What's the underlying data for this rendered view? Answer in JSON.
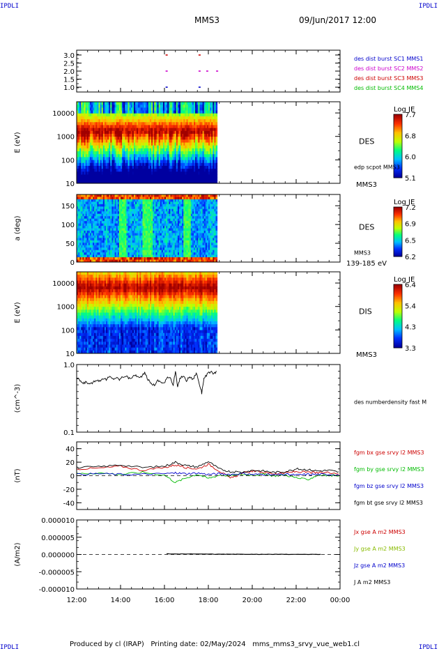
{
  "corner_labels": {
    "top_left": "IPDLI",
    "top_right": "IPDLI",
    "bottom_left": "IPDLI",
    "bottom_right": "IPDLI"
  },
  "header": {
    "title": "MMS3",
    "datetime": "09/Jun/2017 12:00"
  },
  "footer": {
    "text": "Produced by cl (IRAP)   Printing date: 02/May/2024   mms_mms3_srvy_vue_web1.cl"
  },
  "colors": {
    "spectrogram_scale": [
      "#0000a0",
      "#0030ff",
      "#00c0ff",
      "#00ff80",
      "#c0ff00",
      "#ffc000",
      "#ff3000",
      "#a00000"
    ]
  },
  "chart_data": [
    {
      "type": "scatter",
      "panel": "burst",
      "ylim": [
        0.7,
        3.3
      ],
      "yticks": [
        "3.0",
        "2.5",
        "2.0",
        "1.5",
        "1.0"
      ],
      "ytick_values": [
        3.0,
        2.5,
        2.0,
        1.5,
        1.0
      ],
      "legend": [
        {
          "label": "des dist burst SC1 MMS1",
          "color": "#0000cc"
        },
        {
          "label": "des dist burst SC2 MMS2",
          "color": "#cc00cc"
        },
        {
          "label": "des dist burst SC3 MMS3",
          "color": "#cc0000"
        },
        {
          "label": "des dist burst SC4 MMS4",
          "color": "#00bb00"
        }
      ],
      "points": [
        {
          "x": 16.1,
          "y": 3.0,
          "color": "#cc0000"
        },
        {
          "x": 17.6,
          "y": 3.0,
          "color": "#cc0000"
        },
        {
          "x": 16.1,
          "y": 2.0,
          "color": "#cc00cc"
        },
        {
          "x": 17.6,
          "y": 2.0,
          "color": "#cc00cc"
        },
        {
          "x": 17.95,
          "y": 2.0,
          "color": "#cc00cc"
        },
        {
          "x": 18.4,
          "y": 2.0,
          "color": "#cc00cc"
        },
        {
          "x": 16.1,
          "y": 1.0,
          "color": "#0000cc"
        },
        {
          "x": 17.6,
          "y": 1.0,
          "color": "#0000cc"
        }
      ]
    },
    {
      "type": "heatmap",
      "panel": "des_energy",
      "ylabel": "E (eV)",
      "ylim": [
        10,
        30000
      ],
      "log_y": true,
      "yticks": [
        "10000",
        "1000",
        "100",
        "10"
      ],
      "ytick_values": [
        10000,
        1000,
        100,
        10
      ],
      "data_x_range": [
        12.0,
        18.4
      ],
      "side_labels": [
        "DES",
        "edp scpot MMS3"
      ],
      "below_label": "MMS3",
      "colorbar": {
        "title": "Log JE",
        "ticks": [
          "7.7",
          "6.8",
          "6.0",
          "5.1"
        ]
      }
    },
    {
      "type": "heatmap",
      "panel": "des_pitch",
      "ylabel": "a (deg)",
      "ylim": [
        0,
        180
      ],
      "yticks": [
        "150",
        "100",
        "50",
        "0"
      ],
      "ytick_values": [
        150,
        100,
        50,
        0
      ],
      "data_x_range": [
        12.0,
        18.4
      ],
      "side_labels": [
        "DES",
        "MMS3"
      ],
      "below_label": "139-185 eV",
      "colorbar": {
        "title": "Log JE",
        "ticks": [
          "7.2",
          "6.9",
          "6.5",
          "6.2"
        ]
      }
    },
    {
      "type": "heatmap",
      "panel": "dis_energy",
      "ylabel": "E (eV)",
      "ylim": [
        10,
        30000
      ],
      "log_y": true,
      "yticks": [
        "10000",
        "1000",
        "100",
        "10"
      ],
      "ytick_values": [
        10000,
        1000,
        100,
        10
      ],
      "data_x_range": [
        12.0,
        18.4
      ],
      "side_labels": [
        "DIS"
      ],
      "below_label": "MMS3",
      "colorbar": {
        "title": "Log JE",
        "ticks": [
          "6.4",
          "5.4",
          "4.3",
          "3.3"
        ]
      }
    },
    {
      "type": "line",
      "panel": "density",
      "ylabel": "(cm^-3)",
      "ylim": [
        0.1,
        1.0
      ],
      "log_y": true,
      "yticks": [
        "1.0",
        "0.1"
      ],
      "ytick_values": [
        1.0,
        0.1
      ],
      "series": [
        {
          "name": "des numberdensity fast M",
          "color": "#000000",
          "x": [
            12.0,
            12.15,
            12.3,
            12.45,
            12.6,
            12.75,
            12.9,
            13.05,
            13.2,
            13.35,
            13.5,
            13.65,
            13.8,
            13.95,
            14.1,
            14.25,
            14.4,
            14.55,
            14.7,
            14.85,
            15.0,
            15.1,
            15.25,
            15.4,
            15.55,
            15.7,
            15.85,
            16.0,
            16.1,
            16.25,
            16.4,
            16.5,
            16.6,
            16.7,
            16.85,
            17.0,
            17.15,
            17.3,
            17.45,
            17.6,
            17.7,
            17.8,
            17.95,
            18.1,
            18.25,
            18.4
          ],
          "y": [
            0.62,
            0.58,
            0.52,
            0.56,
            0.5,
            0.55,
            0.6,
            0.57,
            0.63,
            0.6,
            0.66,
            0.61,
            0.64,
            0.6,
            0.66,
            0.68,
            0.62,
            0.66,
            0.7,
            0.63,
            0.69,
            0.75,
            0.6,
            0.52,
            0.5,
            0.58,
            0.55,
            0.53,
            0.62,
            0.66,
            0.5,
            0.78,
            0.45,
            0.62,
            0.68,
            0.58,
            0.66,
            0.6,
            0.75,
            0.5,
            0.38,
            0.62,
            0.72,
            0.78,
            0.74,
            0.8
          ]
        }
      ]
    },
    {
      "type": "line",
      "panel": "magnetic_field",
      "ylabel": "(nT)",
      "ylim": [
        -50,
        50
      ],
      "yticks": [
        "40",
        "20",
        "0",
        "-20",
        "-40"
      ],
      "ytick_values": [
        40,
        20,
        0,
        -20,
        -40
      ],
      "series": [
        {
          "name": "fgm bx gse srvy l2 MMS3",
          "color": "#cc0000",
          "x": [
            12,
            13,
            14,
            15,
            16,
            16.5,
            17,
            17.5,
            18,
            18.5,
            19,
            19.5,
            20,
            20.5,
            21,
            21.5,
            22,
            22.5,
            23,
            23.5,
            24
          ],
          "y": [
            10,
            11,
            14,
            8,
            12,
            16,
            12,
            10,
            17,
            7,
            -4,
            3,
            7,
            5,
            3,
            4,
            6,
            5,
            4,
            5,
            3
          ]
        },
        {
          "name": "fgm by gse srvy l2 MMS3",
          "color": "#00bb00",
          "x": [
            12,
            13,
            14,
            15,
            16,
            16.5,
            17,
            17.5,
            18,
            18.5,
            19,
            19.5,
            20,
            20.5,
            21,
            21.5,
            22,
            22.5,
            23,
            23.5,
            24
          ],
          "y": [
            3,
            4,
            2,
            5,
            1,
            -10,
            -3,
            2,
            -4,
            1,
            0,
            2,
            1,
            2,
            0,
            1,
            -3,
            -6,
            1,
            0,
            1
          ]
        },
        {
          "name": "fgm bz gse srvy l2 MMS3",
          "color": "#0000cc",
          "x": [
            12,
            13,
            14,
            15,
            16,
            16.5,
            17,
            17.5,
            18,
            18.5,
            19,
            19.5,
            20,
            20.5,
            21,
            21.5,
            22,
            22.5,
            23,
            23.5,
            24
          ],
          "y": [
            2,
            3,
            2,
            2,
            3,
            4,
            3,
            4,
            2,
            3,
            2,
            3,
            2,
            2,
            1,
            2,
            1,
            2,
            2,
            2,
            1
          ]
        },
        {
          "name": "fgm bt gse srvy l2 MMS3",
          "color": "#000000",
          "x": [
            12,
            13,
            14,
            15,
            16,
            16.5,
            17,
            17.5,
            18,
            18.5,
            19,
            19.5,
            20,
            20.5,
            21,
            21.5,
            22,
            22.5,
            23,
            23.5,
            24
          ],
          "y": [
            12,
            13,
            16,
            12,
            14,
            20,
            15,
            13,
            21,
            10,
            6,
            5,
            8,
            7,
            5,
            6,
            10,
            9,
            7,
            8,
            5
          ]
        }
      ]
    },
    {
      "type": "line",
      "panel": "current_density",
      "ylabel": "(A/m2)",
      "ylim": [
        -1e-05,
        1e-05
      ],
      "yticks": [
        "0.000010",
        "0.000005",
        "0.000000",
        "-0.000005",
        "-0.000010"
      ],
      "ytick_values": [
        1e-05,
        5e-06,
        0,
        -5e-06,
        -1e-05
      ],
      "legend": [
        {
          "label": "Jx gse A m2 MMS3",
          "color": "#cc0000"
        },
        {
          "label": "Jy gse A m2 MMS3",
          "color": "#88bb00"
        },
        {
          "label": "Jz gse A m2 MMS3",
          "color": "#0000cc"
        },
        {
          "label": "J A m2 MMS3",
          "color": "#000000"
        }
      ],
      "series": [
        {
          "name": "J A m2 MMS3",
          "color": "#000000",
          "x": [
            16.1,
            16.6,
            17.2,
            17.8,
            18.4,
            19.0,
            19.6,
            20.2,
            20.8,
            21.4,
            22.0,
            22.6,
            23.2
          ],
          "y": [
            2e-07,
            1e-07,
            1.5e-07,
            1e-07,
            8e-08,
            6e-08,
            5e-08,
            5e-08,
            4e-08,
            4e-08,
            3e-08,
            3e-08,
            2e-08
          ]
        }
      ]
    }
  ],
  "x_axis": {
    "xlim": [
      12,
      24
    ],
    "ticks": [
      "12:00",
      "14:00",
      "16:00",
      "18:00",
      "20:00",
      "22:00",
      "00:00"
    ],
    "tick_values": [
      12,
      14,
      16,
      18,
      20,
      22,
      24
    ]
  }
}
